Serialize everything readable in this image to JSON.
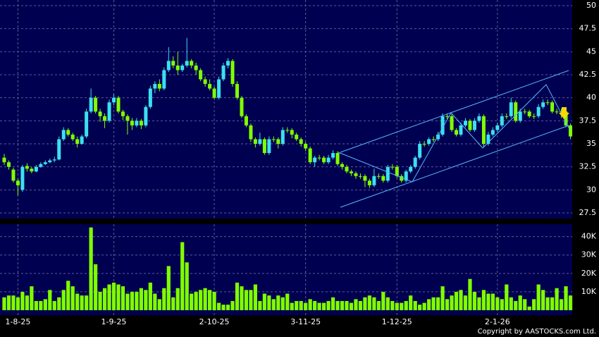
{
  "chart_data": [
    {
      "type": "candlestick",
      "up_color": "#3ce0f0",
      "down_color": "#80ff00",
      "ylim": [
        27.5,
        50
      ],
      "yticks": [
        27.5,
        30,
        32.5,
        35,
        37.5,
        40,
        42.5,
        45,
        47.5,
        50
      ],
      "grid": true,
      "open": [
        33.5,
        33,
        32.2,
        31,
        30,
        32.6,
        32.3,
        32,
        32.5,
        32.8,
        33,
        33.2,
        33.3,
        35.5,
        36.5,
        36,
        35.5,
        35,
        35.8,
        38.5,
        40,
        38.5,
        38,
        37.5,
        39.5,
        40,
        38.5,
        38,
        37.5,
        37,
        37.5,
        37,
        39,
        41,
        41.5,
        41,
        43,
        44,
        43.5,
        43,
        43.5,
        44,
        43.5,
        43,
        42,
        41.5,
        41,
        40,
        42,
        43.5,
        44,
        41.5,
        40,
        38,
        37,
        35.5,
        35,
        35.5,
        34,
        35.5,
        35.5,
        35,
        36.5,
        36.5,
        36,
        35.5,
        35,
        34.5,
        33,
        33.5,
        33.5,
        33,
        33.5,
        34,
        32.8,
        32.5,
        32,
        31.8,
        31.5,
        31.5,
        31,
        30.5,
        31.5,
        31.5,
        31,
        32.5,
        32.5,
        31.5,
        31,
        32,
        32.5,
        33.5,
        35,
        35,
        35.5,
        35.5,
        36,
        38,
        38,
        36.5,
        36,
        37,
        37.5,
        36.5,
        37.5,
        38,
        35,
        36,
        36.5,
        37,
        38,
        38,
        39.5,
        37.5,
        38.5,
        38.5,
        38,
        38,
        39,
        39.5,
        39.5,
        38.5,
        38.5,
        38.5,
        37
      ],
      "high": [
        33.9,
        33.2,
        32.4,
        31.2,
        32.7,
        32.9,
        32.5,
        32.7,
        33,
        33.2,
        33.4,
        33.6,
        35.8,
        36.8,
        36.7,
        36.2,
        35.8,
        36,
        38.8,
        41,
        40.2,
        38.8,
        38.3,
        39.8,
        40.4,
        40.2,
        38.7,
        38.2,
        37.8,
        37.8,
        37.7,
        39.2,
        41.3,
        41.8,
        42,
        43.3,
        45.5,
        44.5,
        45,
        43.7,
        46.5,
        44.2,
        43.8,
        43.2,
        42.3,
        42,
        41.2,
        42.3,
        43.8,
        44.3,
        44.2,
        41.8,
        40.2,
        38.2,
        37.2,
        35.7,
        36.2,
        35.7,
        35.8,
        35.8,
        35.7,
        36.8,
        36.8,
        36.7,
        36.2,
        35.7,
        35.2,
        34.7,
        33.7,
        33.8,
        33.7,
        33.8,
        34.3,
        34.2,
        33,
        32.7,
        32.2,
        32,
        31.8,
        31.7,
        31.2,
        32.3,
        31.8,
        31.7,
        32.7,
        32.8,
        32.7,
        31.7,
        32.2,
        32.7,
        33.7,
        35.3,
        35.3,
        35.7,
        35.8,
        36.3,
        38.3,
        38.3,
        38.2,
        36.7,
        37.3,
        37.8,
        37.7,
        37.8,
        38.3,
        38.2,
        36.3,
        36.8,
        37.3,
        38.3,
        38.3,
        40,
        39.7,
        38.8,
        38.8,
        38.7,
        38.3,
        39.3,
        39.8,
        39.8,
        39.7,
        38.8,
        38.8,
        38.7,
        37.2
      ],
      "low": [
        32.7,
        32.2,
        30.8,
        29.4,
        29.8,
        32,
        31.8,
        31.9,
        32.4,
        32.7,
        32.9,
        33,
        33.2,
        35.3,
        35.8,
        35.3,
        34.6,
        34.9,
        35.6,
        38.3,
        38.3,
        37.4,
        36.7,
        37.3,
        39.2,
        38.3,
        37.6,
        36,
        36.5,
        36.8,
        36.6,
        36.8,
        38.8,
        40.5,
        40.7,
        40.8,
        42.8,
        43.2,
        42.5,
        42.8,
        43.3,
        43.2,
        42.5,
        41.8,
        41.2,
        40.8,
        39.8,
        39.8,
        41.8,
        43.2,
        41.2,
        39.8,
        37.8,
        36.8,
        35.2,
        34.6,
        34.8,
        33.8,
        33.8,
        35.2,
        34.5,
        34.8,
        36.2,
        35.6,
        35.3,
        34.7,
        34.2,
        32.8,
        32.5,
        33.2,
        32.8,
        32.8,
        33.3,
        32.6,
        32.2,
        31.8,
        31.5,
        31.2,
        31.2,
        30.3,
        30.2,
        30.3,
        31.2,
        30.8,
        30.8,
        32.2,
        31.3,
        30.8,
        30.8,
        31.8,
        32.3,
        33.3,
        34.7,
        34.8,
        35.2,
        35.3,
        35.8,
        37.7,
        36.3,
        35.8,
        35.8,
        36.8,
        36.3,
        36.3,
        37.3,
        34.6,
        34.8,
        35.8,
        36.3,
        36.8,
        37.7,
        37.8,
        37.3,
        37.3,
        38.2,
        37.8,
        37.7,
        37.8,
        38.8,
        39.2,
        38.3,
        38.2,
        37.8,
        36.8,
        35.5
      ],
      "close": [
        33,
        32.5,
        31,
        30.5,
        32.5,
        32.3,
        32,
        32.5,
        32.8,
        33,
        33.2,
        33.3,
        35.5,
        36.5,
        36,
        35.5,
        35,
        35.8,
        38.5,
        40,
        38.5,
        38,
        37.5,
        39.5,
        40,
        38.5,
        38,
        37.5,
        37,
        37.5,
        37,
        39,
        41,
        41.5,
        41,
        43,
        44,
        43.5,
        43,
        43.5,
        44,
        43.5,
        43,
        42,
        41.5,
        41,
        40,
        42,
        43.5,
        44,
        41.5,
        40,
        38,
        37,
        35.5,
        35,
        35.5,
        34,
        35.5,
        35.5,
        35,
        36.5,
        36.5,
        36,
        35.5,
        35,
        34.5,
        33,
        33.5,
        33.5,
        33,
        33.5,
        34,
        32.8,
        32.5,
        32,
        31.8,
        31.5,
        31.5,
        31,
        30.5,
        31.5,
        31.5,
        31,
        32.5,
        32.5,
        31.5,
        31,
        32,
        32.5,
        33.5,
        35,
        35,
        35.5,
        35.5,
        36,
        38,
        38,
        36.5,
        36,
        37,
        37.5,
        36.5,
        37.5,
        38,
        35,
        36,
        36.5,
        37,
        38,
        38,
        39.5,
        37.5,
        38.5,
        38.5,
        38,
        38,
        39,
        39.5,
        39.5,
        38.5,
        38.5,
        38.5,
        37,
        35.8
      ]
    },
    {
      "type": "bar",
      "color": "#80ff00",
      "categories": [
        null,
        null,
        null,
        "1-8-25",
        null,
        null,
        null,
        null,
        null,
        null,
        null,
        null,
        null,
        null,
        null,
        null,
        null,
        null,
        null,
        null,
        null,
        null,
        null,
        null,
        "1-9-25",
        null,
        null,
        null,
        null,
        null,
        null,
        null,
        null,
        null,
        null,
        null,
        null,
        null,
        null,
        null,
        null,
        null,
        null,
        null,
        null,
        null,
        "2-10-25",
        null,
        null,
        null,
        null,
        null,
        null,
        null,
        null,
        null,
        null,
        null,
        null,
        null,
        null,
        null,
        null,
        null,
        null,
        null,
        "3-11-25",
        null,
        null,
        null,
        null,
        null,
        null,
        null,
        null,
        null,
        null,
        null,
        null,
        null,
        null,
        null,
        null,
        null,
        null,
        null,
        "1-12-25",
        null,
        null,
        null,
        null,
        null,
        null,
        null,
        null,
        null,
        null,
        null,
        null,
        null,
        null,
        null,
        null,
        null,
        null,
        null,
        null,
        null,
        "2-1-26",
        null,
        null,
        null,
        null,
        null,
        null,
        null,
        null,
        null,
        null,
        null,
        null,
        null,
        null,
        null,
        null
      ],
      "values": [
        7000,
        8000,
        8000,
        7000,
        10000,
        8000,
        13000,
        5000,
        5000,
        6000,
        11000,
        5000,
        7000,
        11000,
        16000,
        13000,
        9000,
        8000,
        8000,
        45000,
        25000,
        10000,
        12000,
        14000,
        15000,
        14000,
        13000,
        9000,
        10000,
        10000,
        12000,
        11000,
        15000,
        9000,
        6000,
        12000,
        24000,
        7000,
        12000,
        37000,
        26000,
        9000,
        10000,
        11000,
        12000,
        11000,
        10000,
        4000,
        3000,
        3000,
        5000,
        15000,
        13000,
        11000,
        11000,
        14000,
        5000,
        9000,
        8000,
        6000,
        8000,
        7000,
        9000,
        4000,
        5000,
        5000,
        4000,
        6000,
        5000,
        4000,
        4000,
        5000,
        7000,
        5000,
        5000,
        5000,
        4000,
        6000,
        5000,
        7000,
        8000,
        7000,
        5000,
        10000,
        7000,
        5000,
        4000,
        4000,
        5000,
        8000,
        5000,
        3000,
        4000,
        6000,
        7000,
        7000,
        13000,
        6000,
        8000,
        10000,
        11000,
        8000,
        17000,
        10000,
        7000,
        11000,
        9000,
        9000,
        7000,
        6000,
        14000,
        7000,
        5000,
        8000,
        6000,
        2000,
        6000,
        14000,
        11000,
        7000,
        7000,
        12000,
        6000,
        13000,
        8000
      ],
      "ylim": [
        0,
        46000
      ],
      "yticks": [
        {
          "value": 10000,
          "label": "10K"
        },
        {
          "value": 20000,
          "label": "20K"
        },
        {
          "value": 30000,
          "label": "30K"
        },
        {
          "value": 40000,
          "label": "40K"
        }
      ],
      "grid": true
    }
  ],
  "copyright": "Copyright by AASTOCKS.com Ltd."
}
